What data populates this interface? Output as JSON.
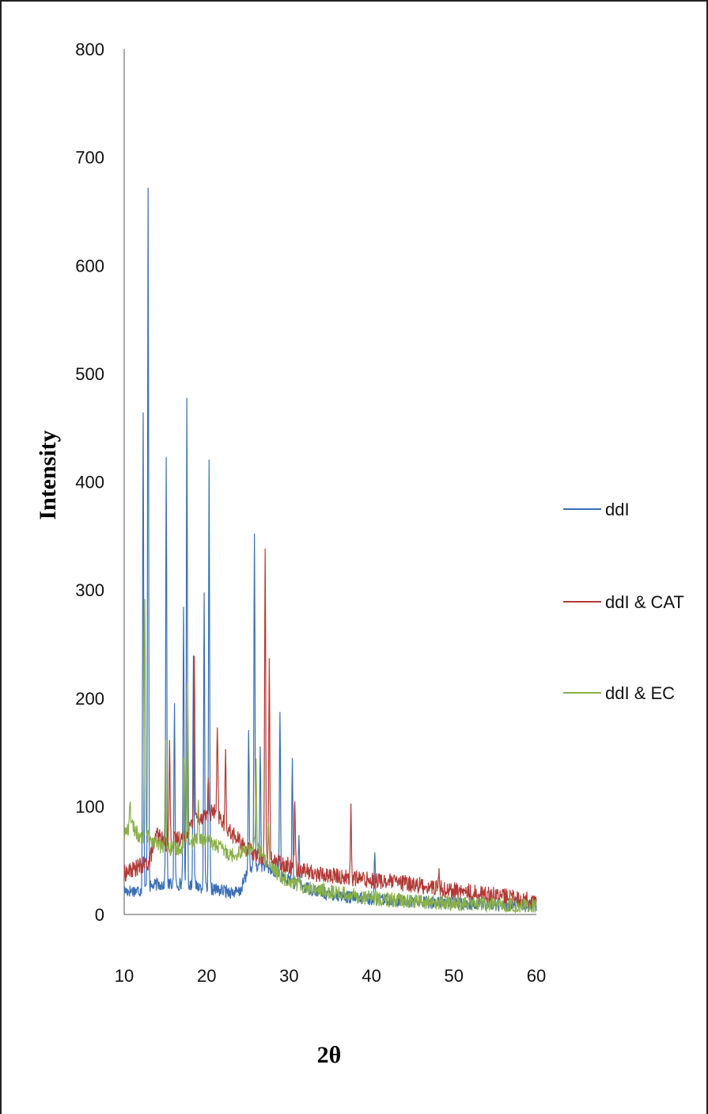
{
  "chart_data": {
    "type": "line",
    "title": "",
    "xlabel": "2θ",
    "ylabel": "Intensity",
    "xlim": [
      10,
      60
    ],
    "ylim": [
      0,
      800
    ],
    "xticks": [
      "10",
      "20",
      "30",
      "40",
      "50",
      "60"
    ],
    "yticks": [
      "0",
      "100",
      "200",
      "300",
      "400",
      "500",
      "600",
      "700",
      "800"
    ],
    "grid": false,
    "legend_position": "right",
    "series": [
      {
        "name": "ddI",
        "color": "#3a6fb5",
        "baseline": [
          [
            10,
            22
          ],
          [
            12,
            22
          ],
          [
            14,
            28
          ],
          [
            18,
            28
          ],
          [
            20,
            24
          ],
          [
            22,
            22
          ],
          [
            24,
            20
          ],
          [
            25,
            40
          ],
          [
            27,
            45
          ],
          [
            29,
            35
          ],
          [
            31,
            28
          ],
          [
            34,
            20
          ],
          [
            38,
            15
          ],
          [
            45,
            12
          ],
          [
            52,
            10
          ],
          [
            60,
            8
          ]
        ],
        "noise": 6,
        "peaks": [
          [
            12.3,
            460
          ],
          [
            12.9,
            675
          ],
          [
            15.1,
            422
          ],
          [
            16.1,
            190
          ],
          [
            17.2,
            280
          ],
          [
            17.6,
            478
          ],
          [
            18.4,
            245
          ],
          [
            19.7,
            292
          ],
          [
            20.3,
            416
          ],
          [
            25.1,
            168
          ],
          [
            25.8,
            353
          ],
          [
            26.5,
            150
          ],
          [
            28.9,
            190
          ],
          [
            30.4,
            140
          ],
          [
            31.2,
            75
          ],
          [
            40.4,
            55
          ]
        ]
      },
      {
        "name": "ddI & CAT",
        "color": "#b23a36",
        "baseline": [
          [
            10,
            38
          ],
          [
            13,
            48
          ],
          [
            14,
            75
          ],
          [
            15,
            65
          ],
          [
            17,
            72
          ],
          [
            19,
            90
          ],
          [
            21,
            95
          ],
          [
            23,
            75
          ],
          [
            25,
            60
          ],
          [
            26,
            55
          ],
          [
            28,
            50
          ],
          [
            30,
            45
          ],
          [
            33,
            38
          ],
          [
            36,
            35
          ],
          [
            40,
            32
          ],
          [
            45,
            28
          ],
          [
            50,
            22
          ],
          [
            55,
            18
          ],
          [
            60,
            12
          ]
        ],
        "noise": 8,
        "peaks": [
          [
            15.5,
            158
          ],
          [
            18.5,
            240
          ],
          [
            20.2,
            120
          ],
          [
            21.3,
            170
          ],
          [
            22.3,
            145
          ],
          [
            27.1,
            340
          ],
          [
            27.6,
            235
          ],
          [
            30.7,
            110
          ],
          [
            37.5,
            95
          ],
          [
            48.2,
            40
          ]
        ]
      },
      {
        "name": "ddI & EC",
        "color": "#8ab04a",
        "baseline": [
          [
            10,
            75
          ],
          [
            11,
            82
          ],
          [
            12,
            70
          ],
          [
            13,
            72
          ],
          [
            14,
            65
          ],
          [
            15,
            60
          ],
          [
            17,
            62
          ],
          [
            19,
            70
          ],
          [
            21,
            65
          ],
          [
            23,
            55
          ],
          [
            25,
            60
          ],
          [
            26,
            65
          ],
          [
            27,
            50
          ],
          [
            29,
            35
          ],
          [
            32,
            25
          ],
          [
            36,
            20
          ],
          [
            40,
            15
          ],
          [
            45,
            12
          ],
          [
            50,
            10
          ],
          [
            55,
            9
          ],
          [
            60,
            7
          ]
        ],
        "noise": 7,
        "peaks": [
          [
            10.7,
            110
          ],
          [
            12.5,
            295
          ],
          [
            15.0,
            155
          ],
          [
            17.3,
            140
          ],
          [
            17.7,
            220
          ],
          [
            19.0,
            105
          ],
          [
            26.0,
            140
          ],
          [
            27.5,
            90
          ]
        ]
      }
    ]
  }
}
